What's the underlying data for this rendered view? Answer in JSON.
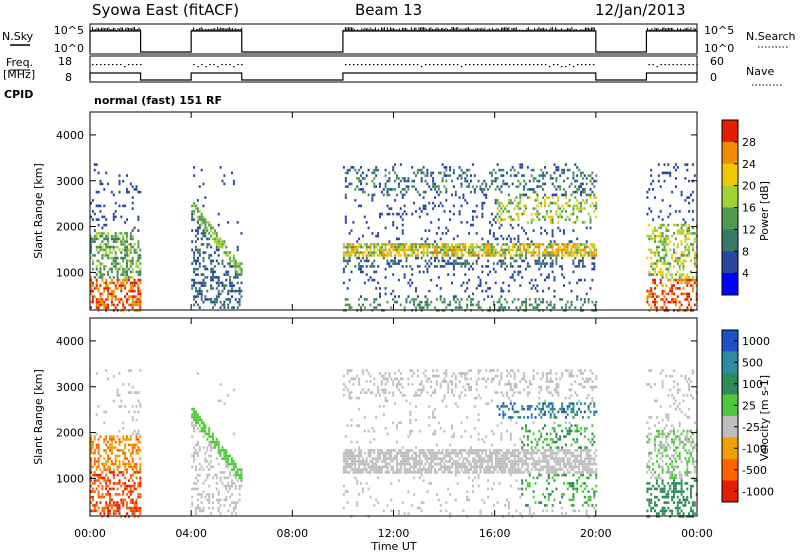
{
  "header": {
    "radar": "Syowa East (fitACF)",
    "beam": "Beam 13",
    "date": "12/Jan/2013"
  },
  "summary": {
    "nsky_label": "N.Sky",
    "nsky_ticks": [
      "10^5",
      "10^0"
    ],
    "nsearch_label": "N.Search",
    "nsearch_ticks": [
      "10^5",
      "10^0"
    ],
    "freq_label": "Freq.",
    "freq_unit": "[MHz]",
    "freq_ticks": [
      "18",
      "8"
    ],
    "nave_label": "Nave",
    "nave_ticks": [
      "60",
      "0"
    ],
    "cpid_label": "CPID",
    "cpid_value": "normal (fast) 151 RF"
  },
  "axes": {
    "xlabel": "Time UT",
    "xticks": [
      "00:00",
      "04:00",
      "08:00",
      "12:00",
      "16:00",
      "20:00",
      "00:00"
    ],
    "x_hours": [
      0,
      4,
      8,
      12,
      16,
      20,
      24
    ],
    "ylabel": "Slant Range [km]",
    "yticks": [
      "1000",
      "2000",
      "3000",
      "4000"
    ],
    "y_values": [
      1000,
      2000,
      3000,
      4000
    ],
    "ylim": [
      180,
      4500
    ]
  },
  "chart_data": [
    {
      "type": "heatmap",
      "quantity": "Power",
      "colorbar_label": "Power [dB]",
      "colorbar_ticks": [
        "4",
        "8",
        "12",
        "16",
        "20",
        "24",
        "28"
      ],
      "colorbar_values": [
        4,
        8,
        12,
        16,
        20,
        24,
        28
      ],
      "range": [
        0,
        30
      ],
      "colors": [
        "#0000ff",
        "#2846a0",
        "#3c7868",
        "#4e9a50",
        "#a0d232",
        "#f0c800",
        "#f08c00",
        "#e61e00"
      ],
      "data_windows_ut": [
        [
          0,
          2
        ],
        [
          4,
          6
        ],
        [
          10,
          20
        ],
        [
          22,
          24
        ]
      ],
      "x_range_ut": [
        0,
        24
      ]
    },
    {
      "type": "heatmap",
      "quantity": "Velocity",
      "colorbar_label": "Velocity [m s-1]",
      "colorbar_ticks": [
        "1000",
        "500",
        "100",
        "25",
        "-25",
        "-100",
        "-500",
        "-1000"
      ],
      "colorbar_values": [
        1000,
        500,
        100,
        25,
        -25,
        -100,
        -500,
        -1000
      ],
      "colors": [
        "#1e50c8",
        "#2d8ca0",
        "#2e8b57",
        "#50c83c",
        "#bebebe",
        "#f0a000",
        "#ff6400",
        "#e61e00"
      ],
      "data_windows_ut": [
        [
          0,
          2
        ],
        [
          4,
          6
        ],
        [
          10,
          20
        ],
        [
          22,
          24
        ]
      ],
      "x_range_ut": [
        0,
        24
      ]
    }
  ]
}
